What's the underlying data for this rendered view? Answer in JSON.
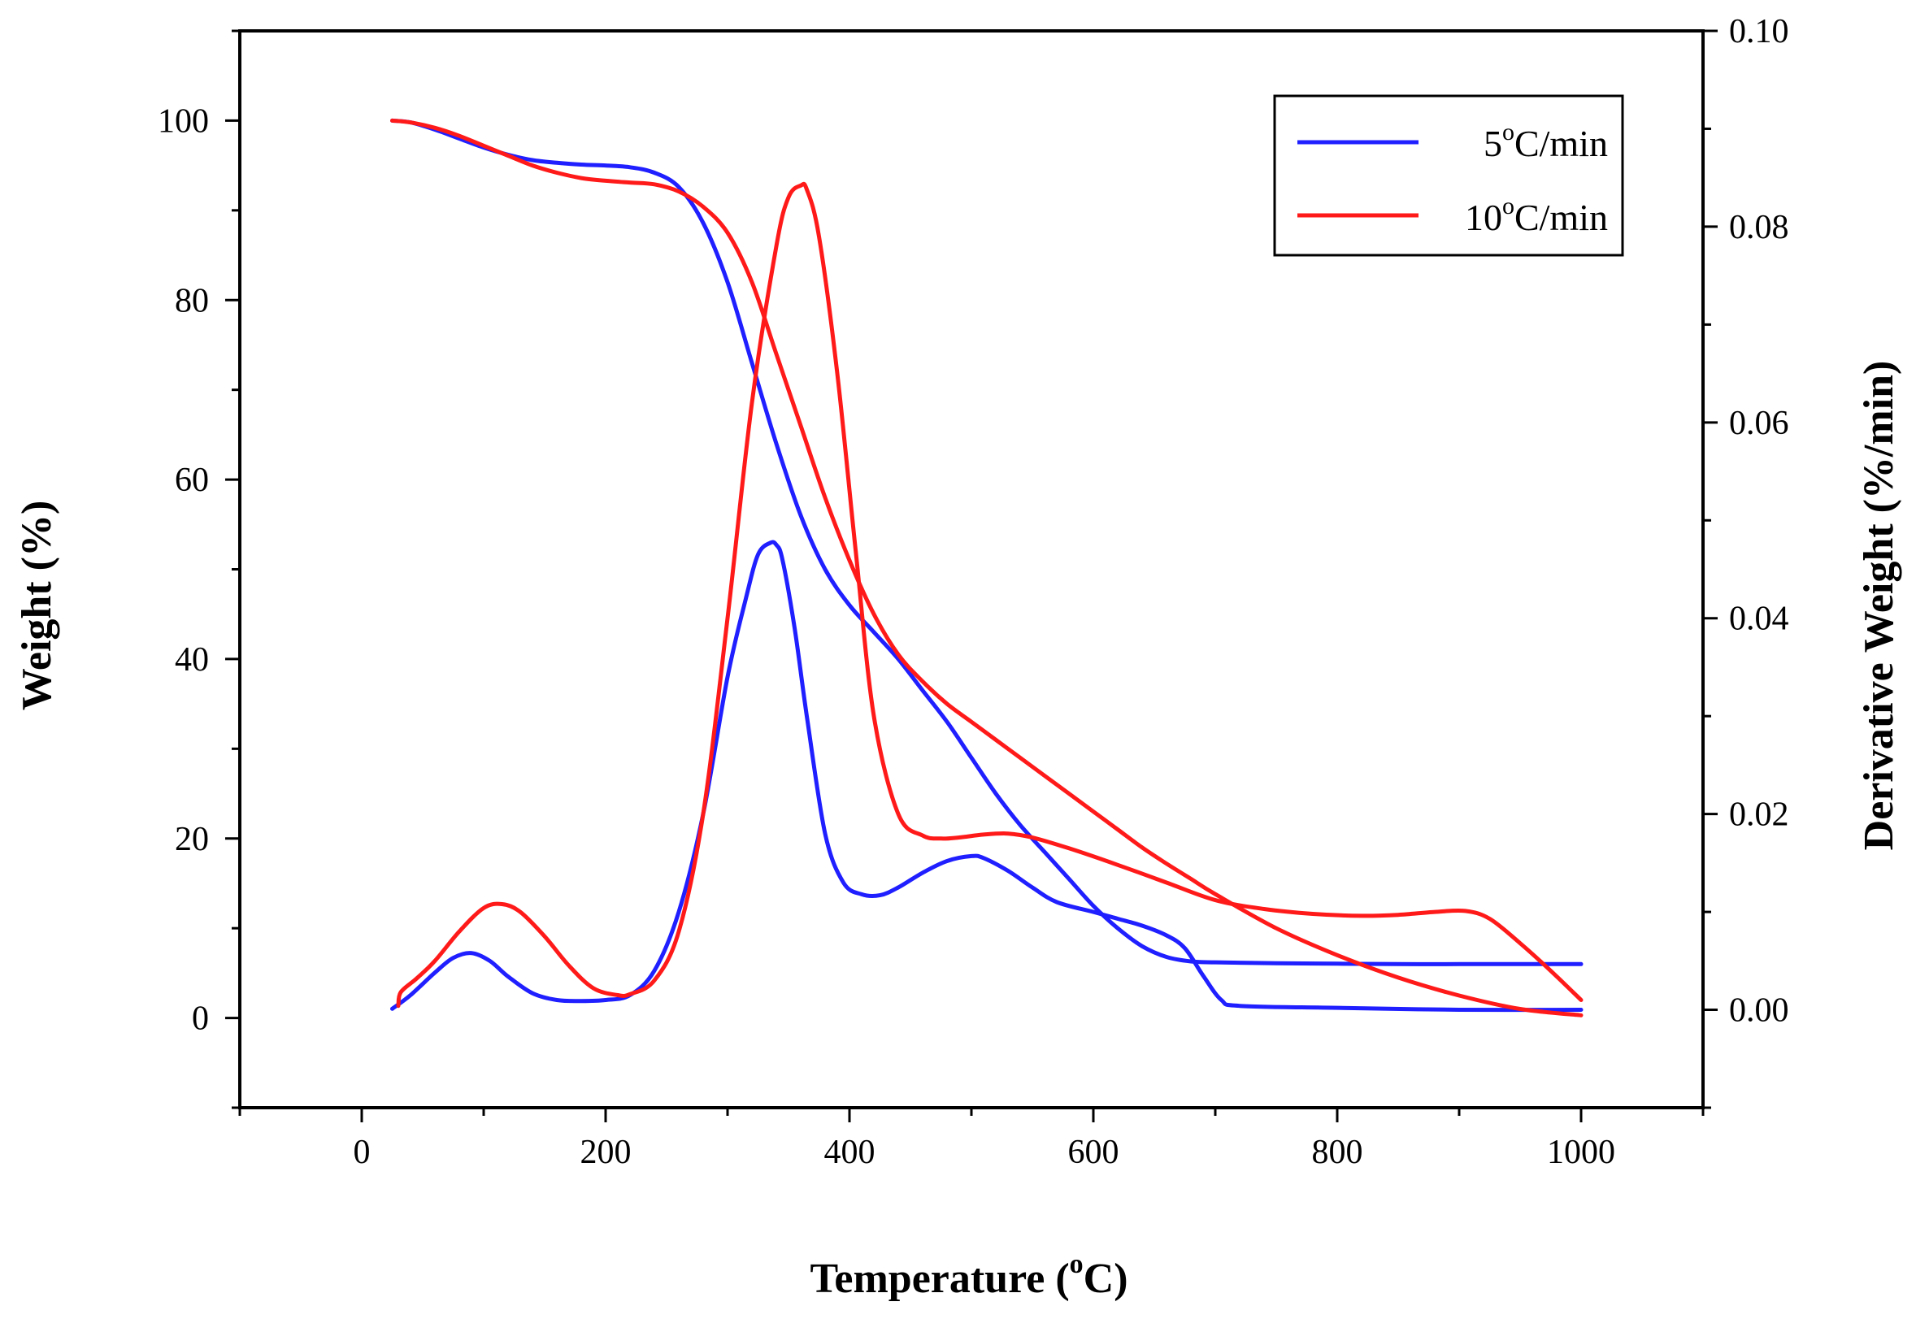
{
  "chart_data": {
    "type": "line",
    "title": "",
    "xlabel": "Temperature (°C)",
    "xlabel_main": "Temperature (",
    "xlabel_sup": "o",
    "xlabel_end": "C)",
    "ylabel": "Weight (%)",
    "y2label": "Derivative Weight (%/min)",
    "xlim": [
      -100,
      1100
    ],
    "ylim": [
      -10,
      110
    ],
    "y2lim": [
      -0.01,
      0.1
    ],
    "xticks": [
      0,
      200,
      400,
      600,
      800,
      1000
    ],
    "yticks": [
      0,
      20,
      40,
      60,
      80,
      100
    ],
    "y2ticks": [
      0.0,
      0.02,
      0.04,
      0.06,
      0.08,
      0.1
    ],
    "y2tick_labels": [
      "0.00",
      "0.02",
      "0.04",
      "0.06",
      "0.08",
      "0.10"
    ],
    "legend": [
      {
        "pre": "5",
        "sup": "o",
        "post": "C/min",
        "color": "#1f1fff"
      },
      {
        "pre": "10",
        "sup": "o",
        "post": "C/min",
        "color": "#ff1a1a"
      }
    ],
    "legend_position": "top-right",
    "series": [
      {
        "name": "5°C/min weight",
        "axis": "left",
        "color": "#1f1fff",
        "x": [
          25,
          40,
          60,
          80,
          100,
          120,
          140,
          160,
          180,
          200,
          220,
          240,
          260,
          280,
          300,
          320,
          340,
          360,
          380,
          400,
          420,
          440,
          460,
          480,
          500,
          520,
          540,
          560,
          580,
          600,
          620,
          640,
          660,
          680,
          700,
          750,
          800,
          850,
          900,
          950,
          1000
        ],
        "y": [
          100,
          99.8,
          99.0,
          98.0,
          97.0,
          96.2,
          95.6,
          95.3,
          95.1,
          95.0,
          94.8,
          94.2,
          92.6,
          88.6,
          82.0,
          73.0,
          64.0,
          56.0,
          50.0,
          46.0,
          43.0,
          40.0,
          36.5,
          33.0,
          29.0,
          25.0,
          21.5,
          18.5,
          15.5,
          12.5,
          10.0,
          8.0,
          6.8,
          6.3,
          6.2,
          6.1,
          6.05,
          6.0,
          6.0,
          6.0,
          6.0
        ]
      },
      {
        "name": "5°C/min derivative",
        "axis": "right",
        "color": "#1f1fff",
        "x": [
          25,
          40,
          60,
          75,
          90,
          105,
          120,
          140,
          160,
          180,
          200,
          220,
          240,
          260,
          280,
          300,
          315,
          325,
          335,
          340,
          345,
          355,
          365,
          380,
          395,
          410,
          425,
          440,
          460,
          480,
          500,
          510,
          530,
          550,
          570,
          600,
          620,
          640,
          660,
          675,
          690,
          705,
          720,
          800,
          900,
          1000
        ],
        "y": [
          0.0001,
          0.0015,
          0.0038,
          0.0053,
          0.0058,
          0.005,
          0.0034,
          0.0017,
          0.001,
          0.0009,
          0.001,
          0.0015,
          0.004,
          0.01,
          0.02,
          0.034,
          0.042,
          0.0465,
          0.0477,
          0.0475,
          0.046,
          0.039,
          0.03,
          0.018,
          0.013,
          0.0118,
          0.0117,
          0.0125,
          0.014,
          0.0152,
          0.0157,
          0.0155,
          0.0142,
          0.0125,
          0.011,
          0.01,
          0.0093,
          0.0086,
          0.0076,
          0.0063,
          0.0035,
          0.001,
          0.0004,
          0.0002,
          0.0,
          0.0
        ]
      },
      {
        "name": "10°C/min weight",
        "axis": "left",
        "color": "#ff1a1a",
        "x": [
          25,
          40,
          60,
          80,
          100,
          120,
          140,
          160,
          180,
          200,
          220,
          240,
          260,
          280,
          300,
          320,
          340,
          360,
          380,
          400,
          420,
          440,
          460,
          480,
          500,
          520,
          540,
          560,
          580,
          600,
          620,
          640,
          660,
          680,
          700,
          750,
          800,
          850,
          900,
          950,
          1000
        ],
        "y": [
          100,
          99.8,
          99.2,
          98.3,
          97.2,
          96.1,
          95.0,
          94.2,
          93.6,
          93.3,
          93.1,
          92.9,
          92.1,
          90.4,
          87.5,
          82.0,
          74.0,
          66.0,
          58.0,
          51.0,
          45.0,
          40.5,
          37.5,
          35.0,
          33.0,
          31.0,
          29.0,
          27.0,
          25.0,
          23.0,
          21.0,
          19.0,
          17.2,
          15.5,
          13.8,
          10.0,
          7.0,
          4.5,
          2.5,
          1.0,
          0.3
        ]
      },
      {
        "name": "10°C/min derivative",
        "axis": "right",
        "color": "#ff1a1a",
        "x": [
          30,
          32,
          45,
          60,
          80,
          100,
          115,
          130,
          150,
          170,
          190,
          210,
          220,
          240,
          260,
          280,
          300,
          320,
          340,
          350,
          360,
          365,
          375,
          390,
          405,
          420,
          440,
          460,
          475,
          490,
          510,
          530,
          550,
          580,
          620,
          660,
          700,
          740,
          780,
          820,
          850,
          880,
          905,
          925,
          950,
          975,
          1000
        ],
        "y": [
          0.0004,
          0.0018,
          0.0032,
          0.005,
          0.008,
          0.0104,
          0.0108,
          0.01,
          0.0075,
          0.0045,
          0.0022,
          0.0015,
          0.0016,
          0.003,
          0.008,
          0.02,
          0.04,
          0.062,
          0.078,
          0.083,
          0.0842,
          0.0838,
          0.079,
          0.065,
          0.047,
          0.03,
          0.02,
          0.0178,
          0.0175,
          0.0176,
          0.0179,
          0.018,
          0.0176,
          0.0165,
          0.0148,
          0.013,
          0.0112,
          0.0103,
          0.0098,
          0.0096,
          0.0097,
          0.01,
          0.0101,
          0.0093,
          0.0068,
          0.004,
          0.001
        ]
      }
    ]
  }
}
